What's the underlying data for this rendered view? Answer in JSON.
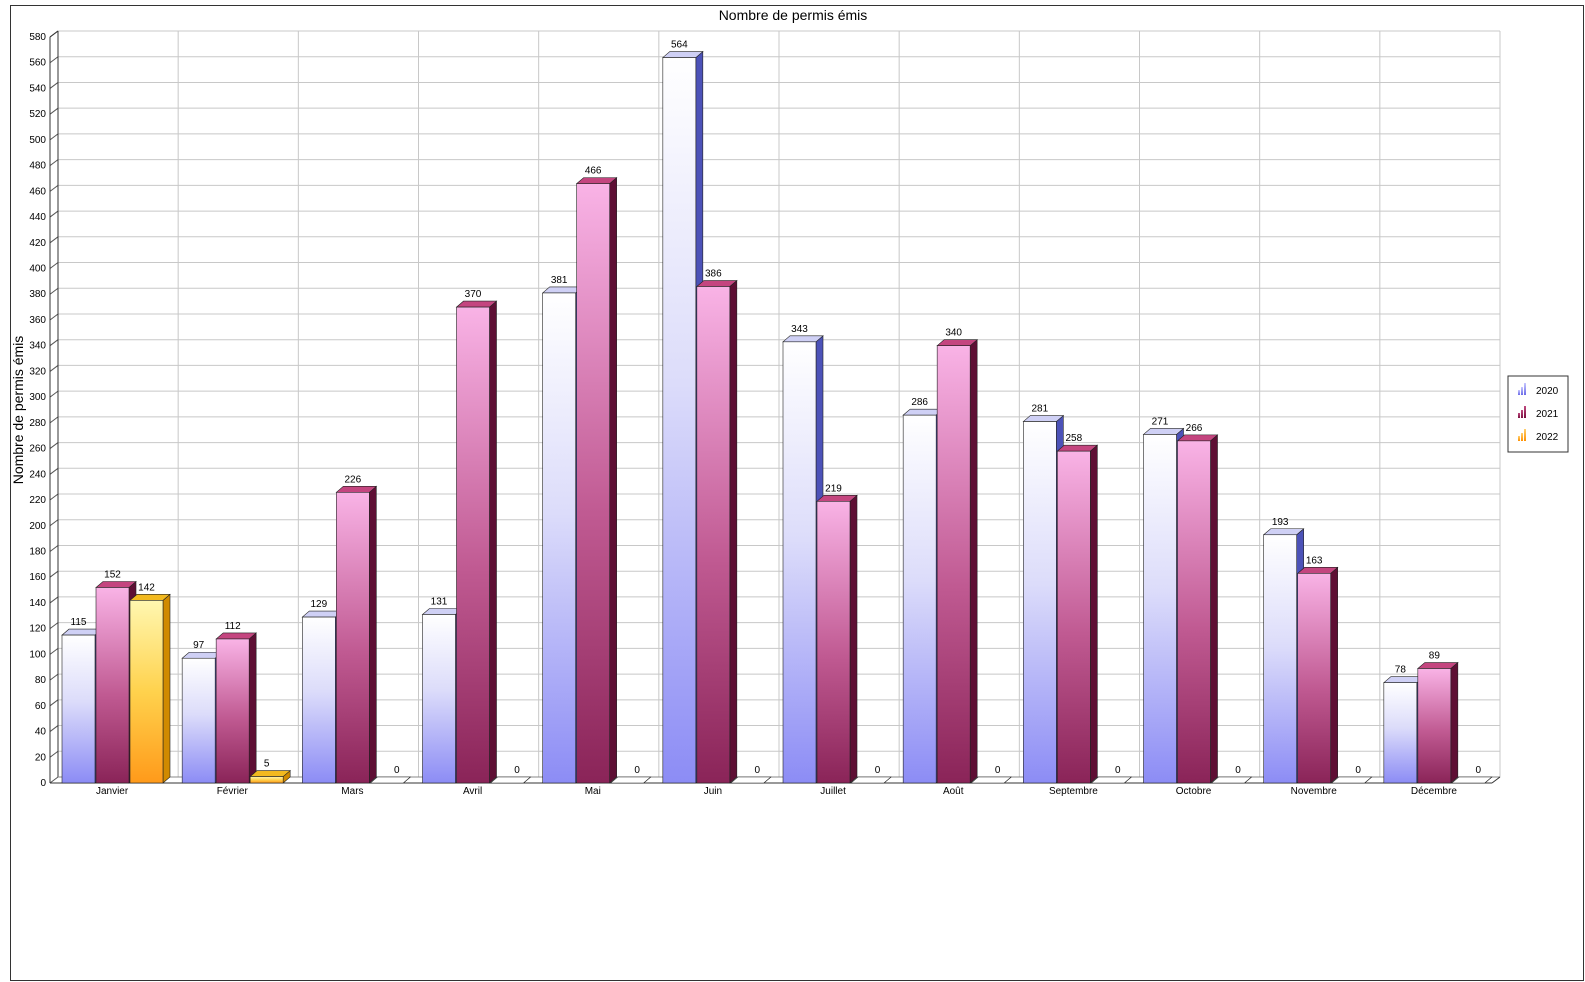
{
  "chart_data": {
    "type": "bar",
    "title": "Nombre de permis émis",
    "xlabel": "",
    "ylabel": "Nombre de permis émis",
    "ylim": [
      0,
      580
    ],
    "ytick_step": 20,
    "grid": true,
    "legend_position": "right",
    "categories": [
      "Janvier",
      "Février",
      "Mars",
      "Avril",
      "Mai",
      "Juin",
      "Juillet",
      "Août",
      "Septembre",
      "Octobre",
      "Novembre",
      "Décembre"
    ],
    "series": [
      {
        "name": "2020",
        "color": "#8c8cf0",
        "values": [
          115,
          97,
          129,
          131,
          381,
          564,
          343,
          286,
          281,
          271,
          193,
          78
        ]
      },
      {
        "name": "2021",
        "color": "#8a1f4e",
        "values": [
          152,
          112,
          226,
          370,
          466,
          386,
          219,
          340,
          258,
          266,
          163,
          89
        ]
      },
      {
        "name": "2022",
        "color": "#ffa726",
        "values": [
          142,
          5,
          0,
          0,
          0,
          0,
          0,
          0,
          0,
          0,
          0,
          0
        ]
      }
    ]
  }
}
